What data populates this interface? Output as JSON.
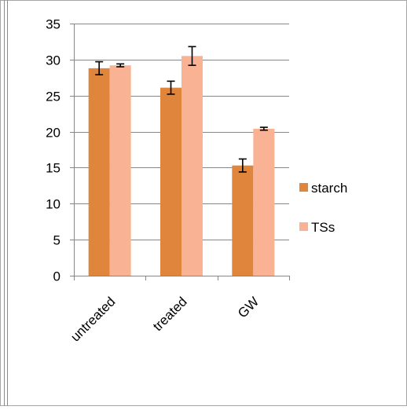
{
  "chart_data": {
    "type": "bar",
    "categories": [
      "untreated",
      "treated",
      "GW"
    ],
    "series": [
      {
        "name": "starch",
        "color": "#E0853C",
        "values": [
          28.8,
          26.1,
          15.3
        ],
        "errors": [
          0.9,
          0.9,
          0.9
        ]
      },
      {
        "name": "TSs",
        "color": "#F9B394",
        "values": [
          29.2,
          30.5,
          20.4
        ],
        "errors": [
          0.2,
          1.3,
          0.2
        ]
      }
    ],
    "ylim": [
      0,
      35
    ],
    "yticks": [
      0,
      5,
      10,
      15,
      20,
      25,
      30,
      35
    ],
    "grid": true,
    "legend": "right",
    "title": "",
    "xlabel": "",
    "ylabel": ""
  }
}
